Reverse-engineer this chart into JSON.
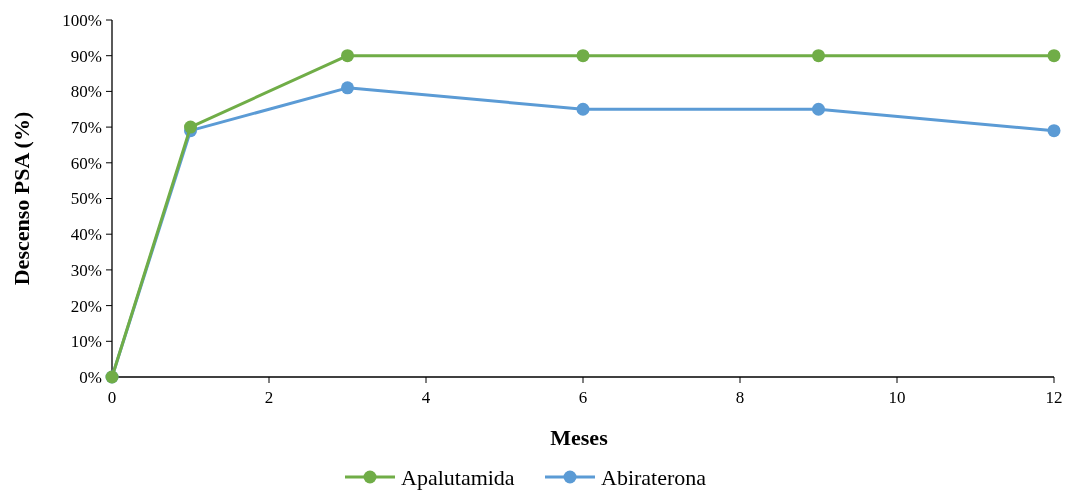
{
  "chart_data": {
    "type": "line",
    "xlabel": "Meses",
    "ylabel": "Descenso PSA (%)",
    "xlim": [
      0,
      12
    ],
    "xticks": [
      0,
      2,
      4,
      6,
      8,
      10,
      12
    ],
    "ylim": [
      0,
      100
    ],
    "yticks": [
      {
        "value": 0,
        "label": "0%"
      },
      {
        "value": 10,
        "label": "10%"
      },
      {
        "value": 20,
        "label": "20%"
      },
      {
        "value": 30,
        "label": "30%"
      },
      {
        "value": 40,
        "label": "40%"
      },
      {
        "value": 50,
        "label": "50%"
      },
      {
        "value": 60,
        "label": "60%"
      },
      {
        "value": 70,
        "label": "70%"
      },
      {
        "value": 80,
        "label": "80%"
      },
      {
        "value": 90,
        "label": "90%"
      },
      {
        "value": 100,
        "label": "100%"
      }
    ],
    "x": [
      0,
      1,
      3,
      6,
      9,
      12
    ],
    "series": [
      {
        "name": "Apalutamida",
        "color": "#70ad47",
        "values": [
          0,
          70,
          90,
          90,
          90,
          90
        ]
      },
      {
        "name": "Abiraterona",
        "color": "#5b9bd5",
        "values": [
          0,
          69,
          81,
          75,
          75,
          69
        ]
      }
    ],
    "marker": "circle",
    "line_style": "solid",
    "grid": false,
    "legend": "bottom"
  }
}
